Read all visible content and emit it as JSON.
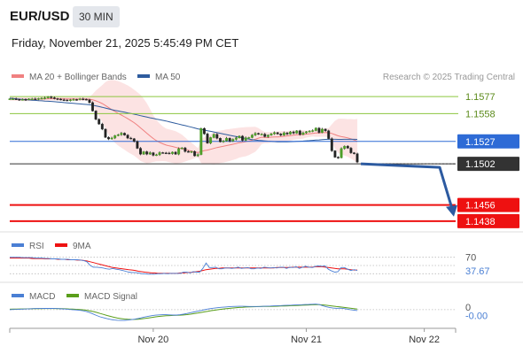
{
  "header": {
    "symbol": "EUR/USD",
    "timeframe": "30 MIN",
    "datetime": "Friday, November 21, 2025 5:45:49 PM CET"
  },
  "chart_data": [
    {
      "type": "candlestick",
      "legend": [
        {
          "name": "MA 20 + Bollinger Bands",
          "color": "#f08080"
        },
        {
          "name": "MA 50",
          "color": "#2e5c9e"
        }
      ],
      "copyright": "Research © 2025 Trading Central",
      "ylim": [
        1.143,
        1.159
      ],
      "candles": [
        1.15745,
        1.15745,
        1.1574,
        1.15735,
        1.15738,
        1.15736,
        1.15744,
        1.15745,
        1.15742,
        1.15748,
        1.15752,
        1.15756,
        1.15767,
        1.15757,
        1.15747,
        1.15742,
        1.15735,
        1.15732,
        1.15727,
        1.15734,
        1.15738,
        1.15737,
        1.15744,
        1.15741,
        1.15735,
        1.15703,
        1.1561,
        1.15517,
        1.15464,
        1.15407,
        1.15316,
        1.15297,
        1.15308,
        1.15335,
        1.15344,
        1.15362,
        1.15341,
        1.15307,
        1.153,
        1.15271,
        1.15193,
        1.15128,
        1.15155,
        1.15128,
        1.15144,
        1.15115,
        1.15121,
        1.15145,
        1.15142,
        1.1514,
        1.15134,
        1.1515,
        1.15128,
        1.15189,
        1.15198,
        1.15158,
        1.15152,
        1.15158,
        1.15109,
        1.15123,
        1.15415,
        1.15355,
        1.15251,
        1.15313,
        1.15349,
        1.15305,
        1.15266,
        1.15276,
        1.15306,
        1.15273,
        1.15293,
        1.1531,
        1.15329,
        1.15282,
        1.15311,
        1.15313,
        1.15341,
        1.1536,
        1.15351,
        1.15351,
        1.15323,
        1.1534,
        1.15355,
        1.15368,
        1.15353,
        1.1534,
        1.15366,
        1.15352,
        1.15376,
        1.15362,
        1.15388,
        1.15347,
        1.15366,
        1.15378,
        1.15385,
        1.15391,
        1.15419,
        1.1537,
        1.15407,
        1.15389,
        1.15301,
        1.15165,
        1.15094,
        1.15088,
        1.1519,
        1.15217,
        1.15195,
        1.15143,
        1.15133,
        1.1504
      ],
      "ma50_start": 1.1576,
      "ma50_end": 1.1528,
      "levels": [
        {
          "value": 1.1577,
          "label": "1.1577",
          "color": "#8cc63f",
          "label_style": "text"
        },
        {
          "value": 1.1558,
          "label": "1.1558",
          "color": "#8cc63f",
          "label_style": "text"
        },
        {
          "value": 1.1527,
          "label": "1.1527",
          "color": "#2e6bd6",
          "label_style": "box"
        },
        {
          "value": 1.1502,
          "label": "1.1502",
          "color": "#333333",
          "label_style": "box"
        },
        {
          "value": 1.1456,
          "label": "1.1456",
          "color": "#ee1111",
          "label_style": "box"
        },
        {
          "value": 1.1438,
          "label": "1.1438",
          "color": "#ee1111",
          "label_style": "box"
        }
      ],
      "projection": {
        "from": 1.1502,
        "to": 1.1446,
        "color": "#2c5aa0"
      }
    },
    {
      "type": "line",
      "legend": [
        {
          "name": "RSI",
          "color": "#4a7fd4"
        },
        {
          "name": "9MA",
          "color": "#ee1111"
        }
      ],
      "ylim": [
        20,
        80
      ],
      "reference": {
        "value": 70,
        "label": "70"
      },
      "current": {
        "value": 37.67,
        "label": "37.67",
        "color": "#4a7fd4"
      },
      "rsi": [
        70,
        70,
        70,
        70,
        69,
        69,
        69,
        69,
        68,
        68,
        68,
        67,
        67,
        66,
        66,
        66,
        65,
        65,
        65,
        64,
        64,
        64,
        63,
        62,
        59,
        50,
        46,
        46,
        45,
        44,
        42,
        41,
        43,
        41,
        40,
        38,
        36,
        34,
        33,
        33,
        32,
        30,
        30,
        29,
        29,
        29,
        30,
        30,
        31,
        30,
        31,
        31,
        31,
        31,
        34,
        34,
        32,
        35,
        34,
        34,
        43,
        56,
        45,
        45,
        46,
        42,
        42,
        44,
        44,
        43,
        44,
        46,
        43,
        44,
        45,
        42,
        42,
        44,
        43,
        46,
        45,
        44,
        45,
        44,
        46,
        46,
        43,
        46,
        45,
        47,
        43,
        46,
        48,
        46,
        45,
        48,
        49,
        48,
        49,
        41,
        37,
        34,
        35,
        45,
        45,
        41,
        38,
        40,
        38
      ],
      "ma": [
        68,
        68,
        68,
        68,
        68,
        68,
        68,
        67,
        67,
        67,
        67,
        66,
        66,
        66,
        66,
        65,
        65,
        65,
        64,
        64,
        64,
        63,
        63,
        62,
        61,
        59,
        57,
        55,
        53,
        51,
        49,
        47,
        45,
        44,
        43,
        42,
        41,
        40,
        39,
        38,
        36,
        35,
        34,
        33,
        32,
        32,
        31,
        31,
        31,
        31,
        31,
        31,
        31,
        32,
        32,
        33,
        33,
        34,
        35,
        36,
        38,
        40,
        41,
        42,
        43,
        43,
        44,
        44,
        44,
        44,
        44,
        44,
        44,
        44,
        44,
        44,
        44,
        44,
        44,
        44,
        44,
        44,
        44,
        45,
        45,
        45,
        45,
        45,
        46,
        46,
        46,
        46,
        46,
        46,
        46,
        47,
        47,
        47,
        46,
        45,
        44,
        43,
        42,
        42,
        42,
        41,
        40,
        39,
        39
      ]
    },
    {
      "type": "line",
      "legend": [
        {
          "name": "MACD",
          "color": "#4a7fd4"
        },
        {
          "name": "MACD Signal",
          "color": "#5a9e1a"
        }
      ],
      "ylim": [
        -0.0022,
        0.0012
      ],
      "reference": {
        "value": 0,
        "label": "0"
      },
      "current": {
        "value": -0.0001,
        "label": "-0.00",
        "color": "#4a7fd4"
      },
      "macd": [
        0.0,
        2e-05,
        4e-05,
        6e-05,
        8e-05,
        0.0001,
        0.00012,
        0.00014,
        0.00015,
        0.00016,
        0.00017,
        0.00017,
        0.00017,
        0.00016,
        0.00014,
        0.00011,
        8e-05,
        4e-05,
        0.0,
        -4e-05,
        -9e-05,
        -0.00015,
        -0.00024,
        -0.0004,
        -0.0006,
        -0.0008,
        -0.00098,
        -0.00112,
        -0.00124,
        -0.00134,
        -0.00142,
        -0.00146,
        -0.00148,
        -0.00147,
        -0.00144,
        -0.00138,
        -0.0013,
        -0.0012,
        -0.0011,
        -0.001,
        -0.0009,
        -0.00082,
        -0.00076,
        -0.00072,
        -0.0007,
        -0.0007,
        -0.00072,
        -0.00074,
        -0.00074,
        -0.0007,
        -0.00062,
        -0.00052,
        -0.00042,
        -0.00032,
        -0.00022,
        -0.00012,
        -2e-05,
        8e-05,
        0.00016,
        0.00022,
        0.00028,
        0.00032,
        0.00036,
        0.0004,
        0.00043,
        0.00045,
        0.00046,
        0.00046,
        0.00045,
        0.00044,
        0.00043,
        0.00043,
        0.00044,
        0.00046,
        0.00048,
        0.0005,
        0.00052,
        0.00054,
        0.00056,
        0.00058,
        0.0006,
        0.00062,
        0.00064,
        0.00066,
        0.00068,
        0.0007,
        0.00072,
        0.00074,
        0.00076,
        0.0007,
        0.00055,
        0.0004,
        0.0003,
        0.00022,
        0.00018,
        0.0002,
        0.00016,
        8e-05,
        0.0,
        -6e-05,
        -0.00012
      ],
      "signal": [
        6e-05,
        7e-05,
        8e-05,
        9e-05,
        0.0001,
        0.00011,
        0.00012,
        0.00013,
        0.00014,
        0.00014,
        0.00015,
        0.00015,
        0.00015,
        0.00015,
        0.00014,
        0.00013,
        0.00012,
        0.0001,
        8e-05,
        5e-05,
        2e-05,
        -2e-05,
        -8e-05,
        -0.00016,
        -0.00026,
        -0.00038,
        -0.00052,
        -0.00066,
        -0.0008,
        -0.00093,
        -0.00105,
        -0.00115,
        -0.00123,
        -0.00129,
        -0.00133,
        -0.00135,
        -0.00134,
        -0.00131,
        -0.00126,
        -0.0012,
        -0.00113,
        -0.00106,
        -0.00099,
        -0.00093,
        -0.00088,
        -0.00084,
        -0.00081,
        -0.00079,
        -0.00078,
        -0.00076,
        -0.00073,
        -0.00068,
        -0.00062,
        -0.00055,
        -0.00047,
        -0.00039,
        -0.0003,
        -0.00022,
        -0.00014,
        -7e-05,
        0.0,
        6e-05,
        0.00012,
        0.00017,
        0.00022,
        0.00026,
        0.0003,
        0.00033,
        0.00036,
        0.00038,
        0.0004,
        0.00041,
        0.00042,
        0.00043,
        0.00044,
        0.00045,
        0.00046,
        0.00047,
        0.00049,
        0.0005,
        0.00052,
        0.00054,
        0.00056,
        0.00058,
        0.0006,
        0.00062,
        0.00064,
        0.00066,
        0.00068,
        0.00068,
        0.00065,
        0.0006,
        0.00054,
        0.00048,
        0.00042,
        0.00037,
        0.00032,
        0.00026,
        0.0002,
        0.00014,
        8e-05
      ]
    }
  ],
  "x_axis": {
    "ticks": [
      {
        "label": "Nov 20",
        "index": 45
      },
      {
        "label": "Nov 21",
        "index": 93
      },
      {
        "label": "Nov 22",
        "index": 130
      }
    ],
    "total": 140
  }
}
